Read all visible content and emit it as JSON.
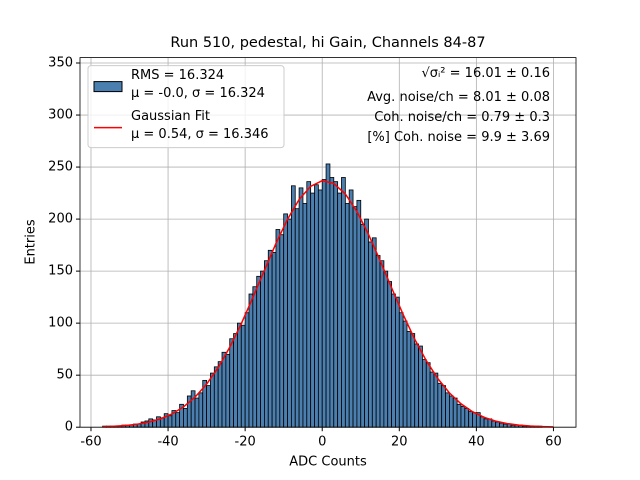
{
  "chart_data": {
    "type": "histogram",
    "title": "Run 510, pedestal, hi Gain, Channels 84-87",
    "xlabel": "ADC Counts",
    "ylabel": "Entries",
    "bins": [
      -57,
      -56,
      -55,
      -54,
      -53,
      -52,
      -51,
      -50,
      -49,
      -48,
      -47,
      -46,
      -45,
      -44,
      -43,
      -42,
      -41,
      -40,
      -39,
      -38,
      -37,
      -36,
      -35,
      -34,
      -33,
      -32,
      -31,
      -30,
      -29,
      -28,
      -27,
      -26,
      -25,
      -24,
      -23,
      -22,
      -21,
      -20,
      -19,
      -18,
      -17,
      -16,
      -15,
      -14,
      -13,
      -12,
      -11,
      -10,
      -9,
      -8,
      -7,
      -6,
      -5,
      -4,
      -3,
      -2,
      -1,
      0,
      1,
      2,
      3,
      4,
      5,
      6,
      7,
      8,
      9,
      10,
      11,
      12,
      13,
      14,
      15,
      16,
      17,
      18,
      19,
      20,
      21,
      22,
      23,
      24,
      25,
      26,
      27,
      28,
      29,
      30,
      31,
      32,
      33,
      34,
      35,
      36,
      37,
      38,
      39,
      40,
      41,
      42,
      43,
      44,
      45,
      46,
      47,
      48,
      49,
      50,
      51,
      52,
      53,
      54,
      55,
      56,
      57,
      58,
      59,
      60
    ],
    "values": [
      1,
      1,
      1,
      1,
      1,
      2,
      2,
      2,
      3,
      3,
      5,
      6,
      8,
      7,
      10,
      9,
      13,
      11,
      16,
      14,
      22,
      18,
      30,
      35,
      28,
      33,
      45,
      40,
      52,
      58,
      63,
      72,
      70,
      85,
      90,
      100,
      98,
      110,
      128,
      135,
      145,
      150,
      160,
      170,
      168,
      190,
      185,
      205,
      200,
      232,
      210,
      230,
      215,
      236,
      225,
      233,
      228,
      238,
      253,
      240,
      236,
      225,
      240,
      215,
      228,
      212,
      218,
      195,
      200,
      178,
      182,
      165,
      160,
      150,
      140,
      128,
      125,
      110,
      102,
      92,
      90,
      80,
      78,
      65,
      62,
      53,
      52,
      42,
      40,
      33,
      30,
      28,
      22,
      20,
      18,
      15,
      14,
      14,
      10,
      8,
      8,
      6,
      5,
      4,
      3,
      3,
      2,
      2,
      2,
      1,
      1,
      1,
      1,
      1,
      0,
      0,
      0
    ],
    "hist": {
      "name": "RMS = 16.324",
      "stats": "μ = -0.0, σ = 16.324",
      "color": "#4a7fb0",
      "edge": "#000000"
    },
    "fit": {
      "name": "Gaussian Fit",
      "stats": "μ = 0.54, σ = 16.346",
      "color": "#ff0000",
      "x": [
        -57,
        -54,
        -51,
        -48,
        -45,
        -42,
        -39,
        -36,
        -33,
        -30,
        -27,
        -24,
        -21,
        -18,
        -15,
        -12,
        -9,
        -6,
        -3,
        0,
        3,
        6,
        9,
        12,
        15,
        18,
        21,
        24,
        27,
        30,
        33,
        36,
        39,
        42,
        45,
        48,
        51,
        54,
        57,
        60
      ],
      "values": [
        0.48,
        0.9,
        1.6,
        2.9,
        4.9,
        8.0,
        12.7,
        19.5,
        28.9,
        41.4,
        57.3,
        76.8,
        99.5,
        124.6,
        150.8,
        176.6,
        199.9,
        218.8,
        231.5,
        236.9,
        234.3,
        224.1,
        207.3,
        185.4,
        160.3,
        134.0,
        108.3,
        84.6,
        63.9,
        46.7,
        33.0,
        22.5,
        14.9,
        9.5,
        5.9,
        3.5,
        2.0,
        1.1,
        0.6,
        0.3
      ]
    },
    "annotations": [
      "√σᵢ² = 16.01 ± 0.16",
      "Avg. noise/ch = 8.01 ± 0.08",
      "Coh. noise/ch = 0.79 ± 0.3",
      "[%] Coh. noise = 9.9 ± 3.69"
    ],
    "xlim": [
      -62.85,
      65.85
    ],
    "ylim": [
      0,
      355.2
    ],
    "xticks": [
      -60,
      -40,
      -20,
      0,
      20,
      40,
      60
    ],
    "yticks": [
      0,
      50,
      100,
      150,
      200,
      250,
      300,
      350
    ],
    "grid": true,
    "legend": "upper left"
  }
}
